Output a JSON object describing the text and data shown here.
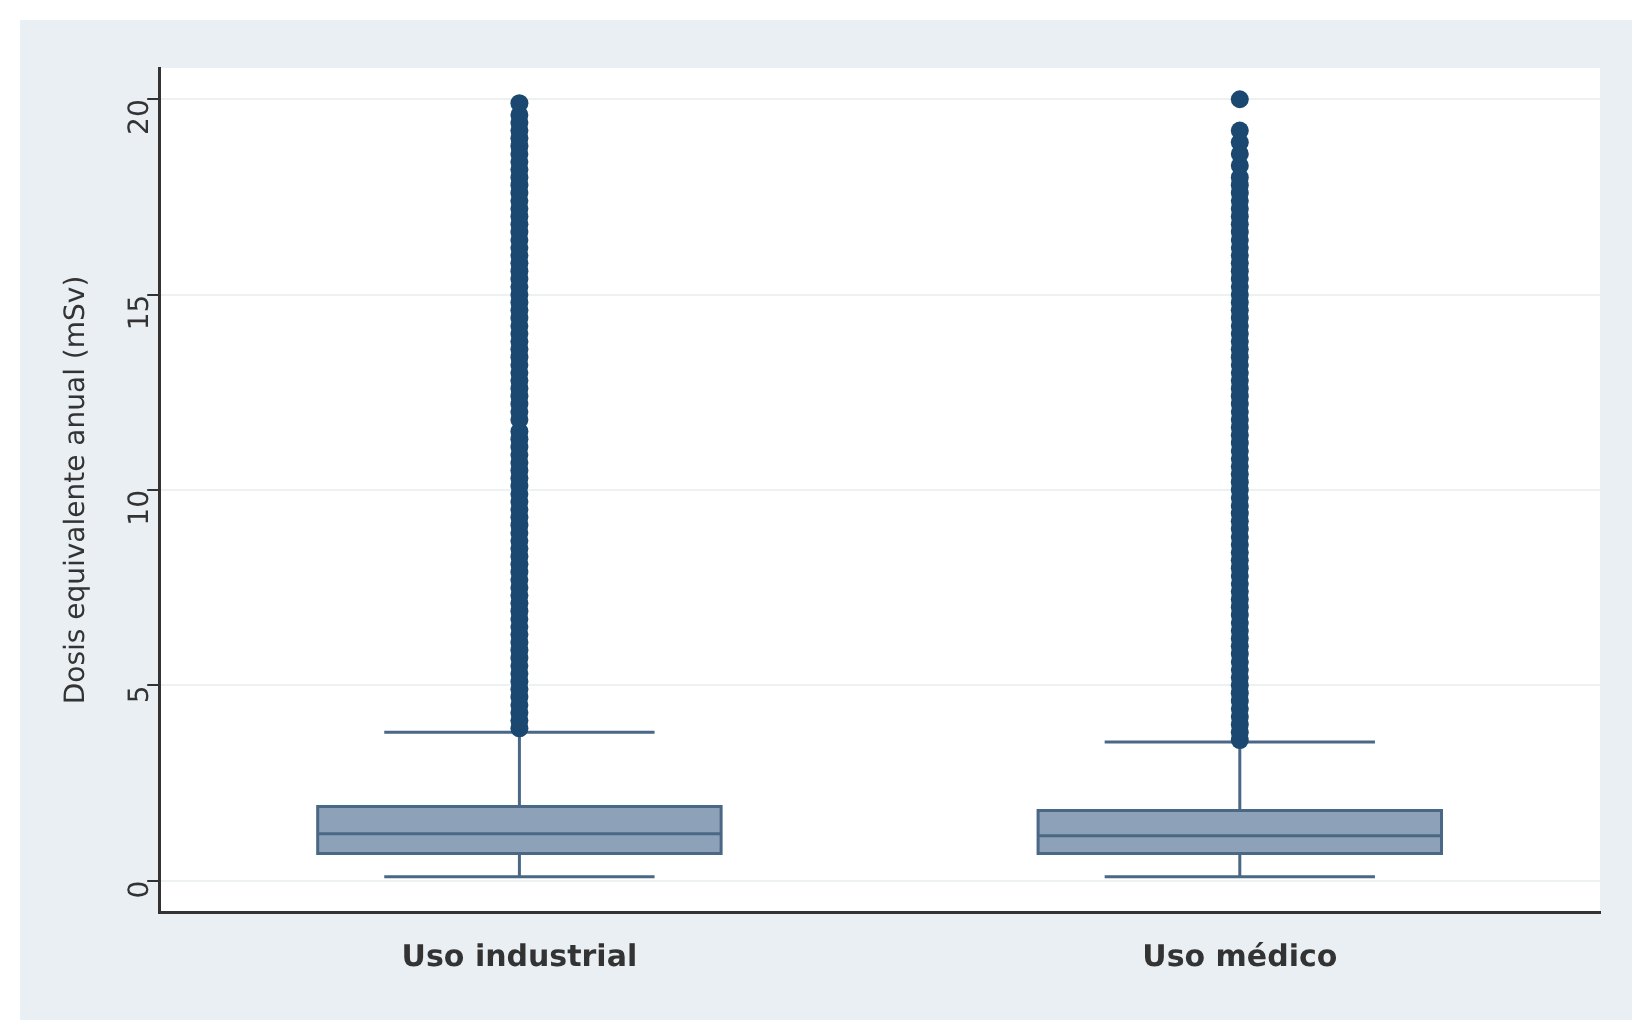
{
  "chart_data": {
    "type": "box",
    "ylabel": "Dosis equivalente anual (mSv)",
    "categories": [
      "Uso industrial",
      "Uso médico"
    ],
    "color": "#8da2b8",
    "marker": "circle",
    "grid": "y",
    "ylim": [
      -0.8,
      20.8
    ],
    "yticks": [
      0,
      5,
      10,
      15,
      20
    ],
    "boxes": [
      {
        "low": 0.1,
        "q1": 0.7,
        "median": 1.2,
        "q3": 1.9,
        "high": 3.8,
        "outliers": [
          3.9,
          4.1,
          4.3,
          4.5,
          4.7,
          4.9,
          5.1,
          5.3,
          5.5,
          5.7,
          5.9,
          6.1,
          6.3,
          6.5,
          6.7,
          6.9,
          7.1,
          7.3,
          7.5,
          7.7,
          7.9,
          8.1,
          8.3,
          8.5,
          8.7,
          8.9,
          9.1,
          9.3,
          9.5,
          9.7,
          9.9,
          10.1,
          10.3,
          10.5,
          10.7,
          10.9,
          11.1,
          11.3,
          11.5,
          11.8,
          12.0,
          12.2,
          12.4,
          12.6,
          12.8,
          13.0,
          13.2,
          13.4,
          13.6,
          13.8,
          14.0,
          14.2,
          14.4,
          14.6,
          14.8,
          15.0,
          15.2,
          15.4,
          15.6,
          15.8,
          16.0,
          16.2,
          16.4,
          16.6,
          16.8,
          17.0,
          17.2,
          17.4,
          17.6,
          17.8,
          18.0,
          18.2,
          18.4,
          18.6,
          18.8,
          19.0,
          19.2,
          19.4,
          19.6,
          19.9
        ]
      },
      {
        "low": 0.1,
        "q1": 0.7,
        "median": 1.15,
        "q3": 1.8,
        "high": 3.55,
        "outliers": [
          3.6,
          3.8,
          4.0,
          4.2,
          4.4,
          4.6,
          4.8,
          5.0,
          5.2,
          5.4,
          5.6,
          5.8,
          6.0,
          6.2,
          6.4,
          6.6,
          6.8,
          7.0,
          7.2,
          7.4,
          7.6,
          7.8,
          8.0,
          8.2,
          8.4,
          8.6,
          8.8,
          9.0,
          9.2,
          9.4,
          9.6,
          9.8,
          10.0,
          10.2,
          10.4,
          10.6,
          10.8,
          11.0,
          11.2,
          11.4,
          11.6,
          11.8,
          12.0,
          12.2,
          12.4,
          12.6,
          12.8,
          13.0,
          13.2,
          13.4,
          13.6,
          13.8,
          14.0,
          14.2,
          14.4,
          14.6,
          14.8,
          15.0,
          15.2,
          15.4,
          15.6,
          15.8,
          16.0,
          16.2,
          16.4,
          16.6,
          16.8,
          17.0,
          17.2,
          17.4,
          17.6,
          17.8,
          18.0,
          18.3,
          18.6,
          18.9,
          19.2,
          20.0
        ]
      }
    ]
  }
}
